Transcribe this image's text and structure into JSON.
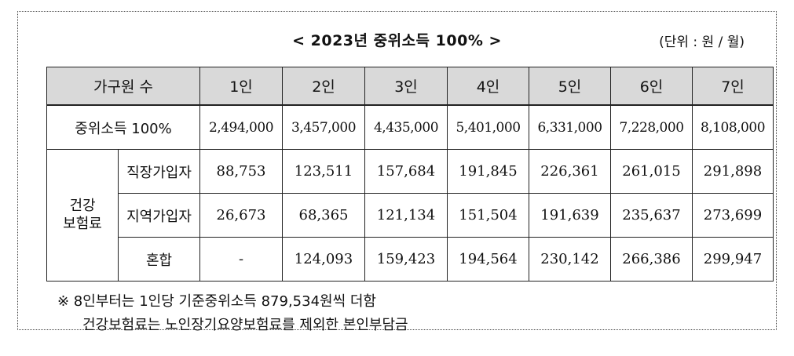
{
  "title": "< 2023년 중위소득 100% >",
  "unit": "(단위 : 원 / 월)",
  "table": {
    "header": [
      "가구원 수",
      "1인",
      "2인",
      "3인",
      "4인",
      "5인",
      "6인",
      "7인"
    ],
    "income": {
      "label": "중위소득 100%",
      "values": [
        "2,494,000",
        "3,457,000",
        "4,435,000",
        "5,401,000",
        "6,331,000",
        "7,228,000",
        "8,108,000"
      ]
    },
    "insurance": {
      "group_label": "건강\n보험료",
      "rows": [
        {
          "label": "직장가입자",
          "values": [
            "88,753",
            "123,511",
            "157,684",
            "191,845",
            "226,361",
            "261,015",
            "291,898"
          ]
        },
        {
          "label": "지역가입자",
          "values": [
            "26,673",
            "68,365",
            "121,134",
            "151,504",
            "191,639",
            "235,637",
            "273,699"
          ]
        },
        {
          "label": "혼합",
          "values": [
            "-",
            "124,093",
            "159,423",
            "194,564",
            "230,142",
            "266,386",
            "299,947"
          ]
        }
      ]
    }
  },
  "notes": [
    "※ 8인부터는 1인당 기준중위소득 879,534원씩 더함",
    "건강보험료는 노인장기요양보험료를 제외한 본인부담금"
  ]
}
